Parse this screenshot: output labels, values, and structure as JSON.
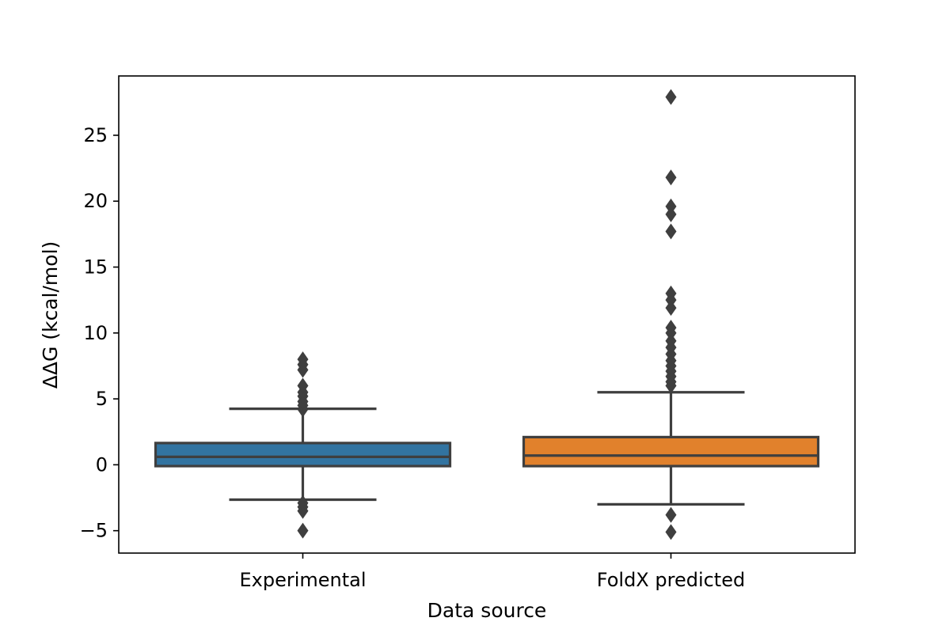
{
  "chart_data": {
    "type": "box",
    "xlabel": "Data source",
    "ylabel": "ΔΔG (kcal/mol)",
    "ylim": [
      -6.7,
      29.5
    ],
    "yticks": [
      -5,
      0,
      5,
      10,
      15,
      20,
      25
    ],
    "ytick_labels": [
      "−5",
      "0",
      "5",
      "10",
      "15",
      "20",
      "25"
    ],
    "grid": false,
    "series": [
      {
        "name": "Experimental",
        "color": "#3274a1",
        "q1": -0.1,
        "median": 0.6,
        "q3": 1.65,
        "whisker_low": -2.65,
        "whisker_high": 4.25,
        "outliers": [
          -5.0,
          -3.5,
          -3.2,
          -2.9,
          4.2,
          4.5,
          4.8,
          5.2,
          5.5,
          6.0,
          7.2,
          7.6,
          8.0
        ]
      },
      {
        "name": "FoldX predicted",
        "color": "#e1812c",
        "q1": -0.1,
        "median": 0.7,
        "q3": 2.1,
        "whisker_low": -3.0,
        "whisker_high": 5.5,
        "outliers": [
          -5.1,
          -3.8,
          6.0,
          6.3,
          6.7,
          7.1,
          7.5,
          7.9,
          8.4,
          8.9,
          9.4,
          10.0,
          10.4,
          11.9,
          12.5,
          13.0,
          17.7,
          19.0,
          19.6,
          21.8,
          27.9
        ]
      }
    ]
  }
}
